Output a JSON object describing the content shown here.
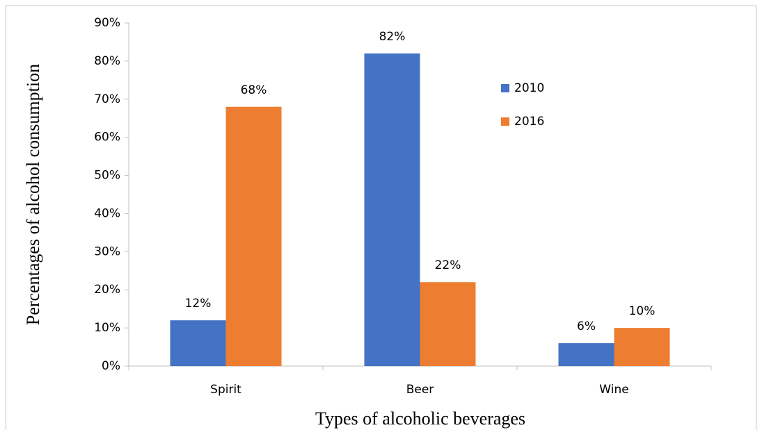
{
  "chart_data": {
    "type": "bar",
    "x_label": "Types of alcoholic beverages",
    "y_label": "Percentages of alcohol consumption",
    "categories": [
      "Spirit",
      "Beer",
      "Wine"
    ],
    "series": [
      {
        "name": "2010",
        "color": "#4472c4",
        "values": [
          12,
          82,
          6
        ],
        "value_labels": [
          "12%",
          "82%",
          "6%"
        ]
      },
      {
        "name": "2016",
        "color": "#ed7d31",
        "values": [
          68,
          22,
          10
        ],
        "value_labels": [
          "68%",
          "22%",
          "10%"
        ]
      }
    ],
    "ylim": [
      0,
      90
    ],
    "yticks": [
      {
        "value": 0,
        "label": "0%"
      },
      {
        "value": 10,
        "label": "10%"
      },
      {
        "value": 20,
        "label": "20%"
      },
      {
        "value": 30,
        "label": "30%"
      },
      {
        "value": 40,
        "label": "40%"
      },
      {
        "value": 50,
        "label": "50%"
      },
      {
        "value": 60,
        "label": "60%"
      },
      {
        "value": 70,
        "label": "70%"
      },
      {
        "value": 80,
        "label": "80%"
      },
      {
        "value": 90,
        "label": "90%"
      }
    ],
    "grid": false
  }
}
